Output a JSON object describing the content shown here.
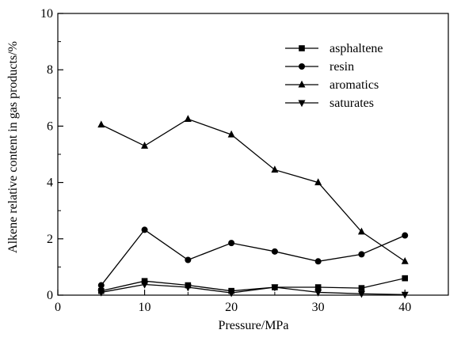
{
  "chart_data": {
    "type": "line",
    "xlabel": "Pressure/MPa",
    "ylabel": "Alkene relative content in gas products/%",
    "xlim": [
      0,
      45
    ],
    "ylim": [
      0,
      10
    ],
    "x_ticks": [
      "0",
      "10",
      "20",
      "30",
      "40"
    ],
    "y_ticks": [
      "0",
      "2",
      "4",
      "6",
      "8",
      "10"
    ],
    "x": [
      5,
      10,
      15,
      20,
      25,
      30,
      35,
      40
    ],
    "legend_position": "top-right",
    "grid": false,
    "series": [
      {
        "name": "asphaltene",
        "marker": "square",
        "values": [
          0.15,
          0.5,
          0.35,
          0.15,
          0.28,
          0.28,
          0.25,
          0.6
        ]
      },
      {
        "name": "resin",
        "marker": "circle",
        "values": [
          0.35,
          2.32,
          1.25,
          1.85,
          1.55,
          1.2,
          1.45,
          2.12
        ]
      },
      {
        "name": "aromatics",
        "marker": "triangle-up",
        "values": [
          6.05,
          5.3,
          6.25,
          5.7,
          4.45,
          4.0,
          2.25,
          1.2
        ]
      },
      {
        "name": "saturates",
        "marker": "triangle-down",
        "values": [
          0.1,
          0.38,
          0.28,
          0.08,
          0.28,
          0.1,
          0.05,
          0.02
        ]
      }
    ]
  }
}
